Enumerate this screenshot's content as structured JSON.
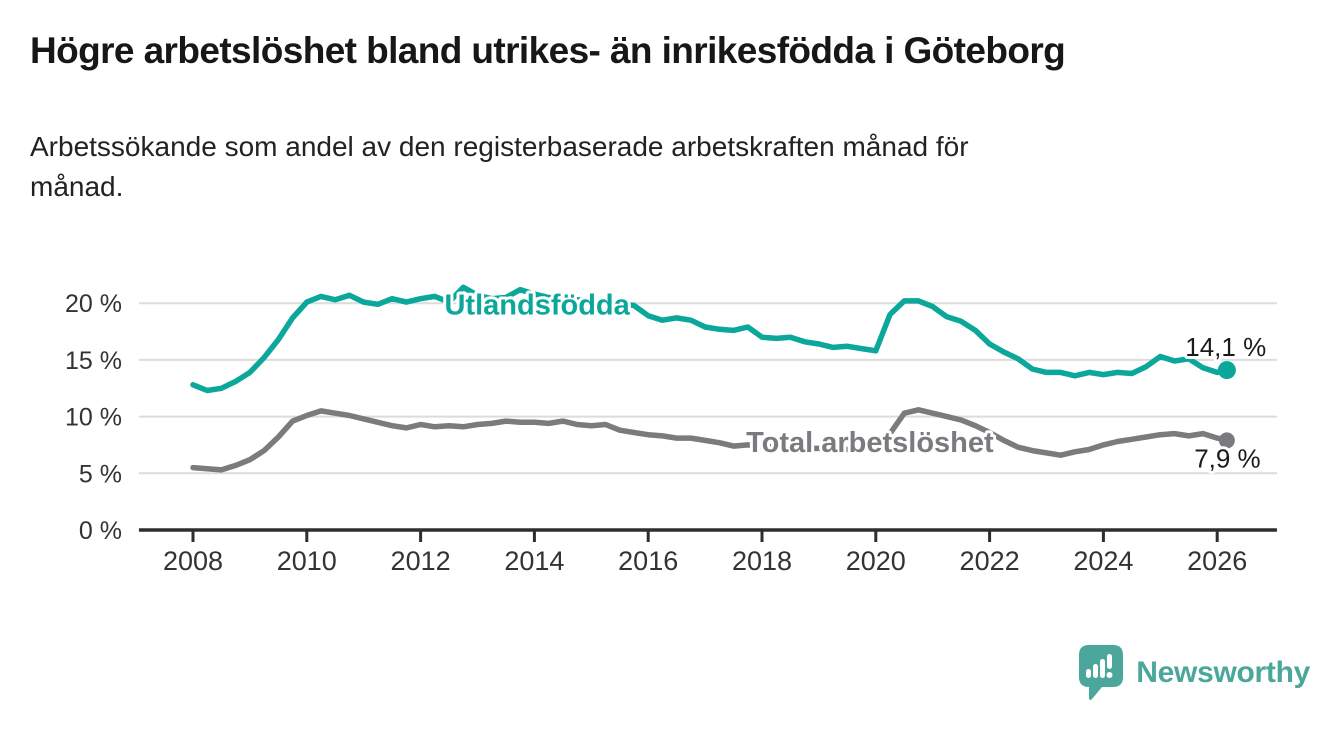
{
  "header": {
    "title": "Högre arbetslöshet bland utrikes- än inrikesfödda i Göteborg",
    "subtitle_lines": [
      "Arbetssökande som andel av den registerbaserade arbetskraften månad för",
      "månad."
    ]
  },
  "chart_data": {
    "type": "line",
    "title": "Högre arbetslöshet bland utrikes- än inrikesfödda i Göteborg",
    "subtitle": "Arbetssökande som andel av den registerbaserade arbetskraften månad för månad.",
    "unit": "%",
    "grid": true,
    "legend_position": "inline-labels",
    "x_range": [
      2007.05,
      2027.05
    ],
    "ylim": [
      0,
      22
    ],
    "x_ticks": [
      2008,
      2010,
      2012,
      2014,
      2016,
      2018,
      2020,
      2022,
      2024,
      2026
    ],
    "y_ticks": [
      {
        "value": 0,
        "label": "0 %"
      },
      {
        "value": 5,
        "label": "5 %"
      },
      {
        "value": 10,
        "label": "10 %"
      },
      {
        "value": 15,
        "label": "15 %"
      },
      {
        "value": 20,
        "label": "20 %"
      }
    ],
    "series": [
      {
        "name": "Utlandsfödda",
        "color": "#0ba79a",
        "inline_label": {
          "text": "Utlandsfödda",
          "year": 2012.42,
          "value": 19.0
        },
        "end_point": {
          "year": 2026.17,
          "value": 14.1
        },
        "end_label": {
          "text": "14,1 %",
          "year": 2026.15,
          "value": 15.35
        },
        "points": [
          [
            2008,
            12.8
          ],
          [
            2008.25,
            12.3
          ],
          [
            2008.5,
            12.5
          ],
          [
            2008.75,
            13.1
          ],
          [
            2009,
            13.9
          ],
          [
            2009.25,
            15.2
          ],
          [
            2009.5,
            16.8
          ],
          [
            2009.75,
            18.7
          ],
          [
            2010,
            20.1
          ],
          [
            2010.25,
            20.6
          ],
          [
            2010.5,
            20.3
          ],
          [
            2010.75,
            20.7
          ],
          [
            2011,
            20.1
          ],
          [
            2011.25,
            19.9
          ],
          [
            2011.5,
            20.4
          ],
          [
            2011.75,
            20.1
          ],
          [
            2012,
            20.4
          ],
          [
            2012.25,
            20.6
          ],
          [
            2012.5,
            20.1
          ],
          [
            2012.75,
            21.4
          ],
          [
            2013,
            20.7
          ],
          [
            2013.25,
            20.4
          ],
          [
            2013.5,
            20.5
          ],
          [
            2013.75,
            21.2
          ],
          [
            2014,
            20.8
          ],
          [
            2014.25,
            20.5
          ],
          [
            2014.5,
            20.4
          ],
          [
            2014.75,
            20.3
          ],
          [
            2015,
            20.2
          ],
          [
            2015.25,
            20.1
          ],
          [
            2015.5,
            20.0
          ],
          [
            2015.75,
            19.8
          ],
          [
            2016,
            18.9
          ],
          [
            2016.25,
            18.5
          ],
          [
            2016.5,
            18.7
          ],
          [
            2016.75,
            18.5
          ],
          [
            2017,
            17.9
          ],
          [
            2017.25,
            17.7
          ],
          [
            2017.5,
            17.6
          ],
          [
            2017.75,
            17.9
          ],
          [
            2018,
            17.0
          ],
          [
            2018.25,
            16.9
          ],
          [
            2018.5,
            17.0
          ],
          [
            2018.75,
            16.6
          ],
          [
            2019,
            16.4
          ],
          [
            2019.25,
            16.1
          ],
          [
            2019.5,
            16.2
          ],
          [
            2019.75,
            16.0
          ],
          [
            2020,
            15.8
          ],
          [
            2020.25,
            19.0
          ],
          [
            2020.5,
            20.2
          ],
          [
            2020.75,
            20.2
          ],
          [
            2021,
            19.7
          ],
          [
            2021.25,
            18.8
          ],
          [
            2021.5,
            18.4
          ],
          [
            2021.75,
            17.6
          ],
          [
            2022,
            16.4
          ],
          [
            2022.25,
            15.7
          ],
          [
            2022.5,
            15.1
          ],
          [
            2022.75,
            14.2
          ],
          [
            2023,
            13.9
          ],
          [
            2023.25,
            13.9
          ],
          [
            2023.5,
            13.6
          ],
          [
            2023.75,
            13.9
          ],
          [
            2024,
            13.7
          ],
          [
            2024.25,
            13.9
          ],
          [
            2024.5,
            13.8
          ],
          [
            2024.75,
            14.4
          ],
          [
            2025,
            15.3
          ],
          [
            2025.25,
            14.9
          ],
          [
            2025.5,
            15.1
          ],
          [
            2025.75,
            14.3
          ],
          [
            2026,
            13.9
          ],
          [
            2026.17,
            14.1
          ]
        ]
      },
      {
        "name": "Total arbetslöshet",
        "color": "#7b7a7e",
        "inline_label": {
          "text": "Total arbetslöshet",
          "year": 2017.72,
          "value": 6.9
        },
        "end_point": {
          "year": 2026.17,
          "value": 7.9
        },
        "end_label": {
          "text": "7,9 %",
          "year": 2026.18,
          "value": 5.5
        },
        "points": [
          [
            2008,
            5.5
          ],
          [
            2008.25,
            5.4
          ],
          [
            2008.5,
            5.3
          ],
          [
            2008.75,
            5.7
          ],
          [
            2009,
            6.2
          ],
          [
            2009.25,
            7.0
          ],
          [
            2009.5,
            8.2
          ],
          [
            2009.75,
            9.6
          ],
          [
            2010,
            10.1
          ],
          [
            2010.25,
            10.5
          ],
          [
            2010.5,
            10.3
          ],
          [
            2010.75,
            10.1
          ],
          [
            2011,
            9.8
          ],
          [
            2011.25,
            9.5
          ],
          [
            2011.5,
            9.2
          ],
          [
            2011.75,
            9.0
          ],
          [
            2012,
            9.3
          ],
          [
            2012.25,
            9.1
          ],
          [
            2012.5,
            9.2
          ],
          [
            2012.75,
            9.1
          ],
          [
            2013,
            9.3
          ],
          [
            2013.25,
            9.4
          ],
          [
            2013.5,
            9.6
          ],
          [
            2013.75,
            9.5
          ],
          [
            2014,
            9.5
          ],
          [
            2014.25,
            9.4
          ],
          [
            2014.5,
            9.6
          ],
          [
            2014.75,
            9.3
          ],
          [
            2015,
            9.2
          ],
          [
            2015.25,
            9.3
          ],
          [
            2015.5,
            8.8
          ],
          [
            2015.75,
            8.6
          ],
          [
            2016,
            8.4
          ],
          [
            2016.25,
            8.3
          ],
          [
            2016.5,
            8.1
          ],
          [
            2016.75,
            8.1
          ],
          [
            2017,
            7.9
          ],
          [
            2017.25,
            7.7
          ],
          [
            2017.5,
            7.4
          ],
          [
            2017.75,
            7.5
          ],
          [
            2018,
            7.4
          ],
          [
            2018.25,
            7.3
          ],
          [
            2018.5,
            7.3
          ],
          [
            2018.75,
            7.2
          ],
          [
            2019,
            7.2
          ],
          [
            2019.25,
            7.1
          ],
          [
            2019.5,
            7.1
          ],
          [
            2019.75,
            7.2
          ],
          [
            2020,
            7.4
          ],
          [
            2020.25,
            8.5
          ],
          [
            2020.5,
            10.3
          ],
          [
            2020.75,
            10.6
          ],
          [
            2021,
            10.3
          ],
          [
            2021.25,
            10.0
          ],
          [
            2021.5,
            9.7
          ],
          [
            2021.75,
            9.2
          ],
          [
            2022,
            8.6
          ],
          [
            2022.25,
            7.9
          ],
          [
            2022.5,
            7.3
          ],
          [
            2022.75,
            7.0
          ],
          [
            2023,
            6.8
          ],
          [
            2023.25,
            6.6
          ],
          [
            2023.5,
            6.9
          ],
          [
            2023.75,
            7.1
          ],
          [
            2024,
            7.5
          ],
          [
            2024.25,
            7.8
          ],
          [
            2024.5,
            8.0
          ],
          [
            2024.75,
            8.2
          ],
          [
            2025,
            8.4
          ],
          [
            2025.25,
            8.5
          ],
          [
            2025.5,
            8.3
          ],
          [
            2025.75,
            8.5
          ],
          [
            2026,
            8.1
          ],
          [
            2026.17,
            7.9
          ]
        ]
      }
    ]
  },
  "footer": {
    "brand": "Newsworthy"
  },
  "colors": {
    "accent_teal": "#0ba79a",
    "line_gray": "#7b7a7e",
    "logo_teal": "#4ba69b",
    "axis": "#2e2e2e",
    "grid": "#dcdcdc",
    "text_dark": "#1a1a1a",
    "text_medium": "#333333"
  }
}
